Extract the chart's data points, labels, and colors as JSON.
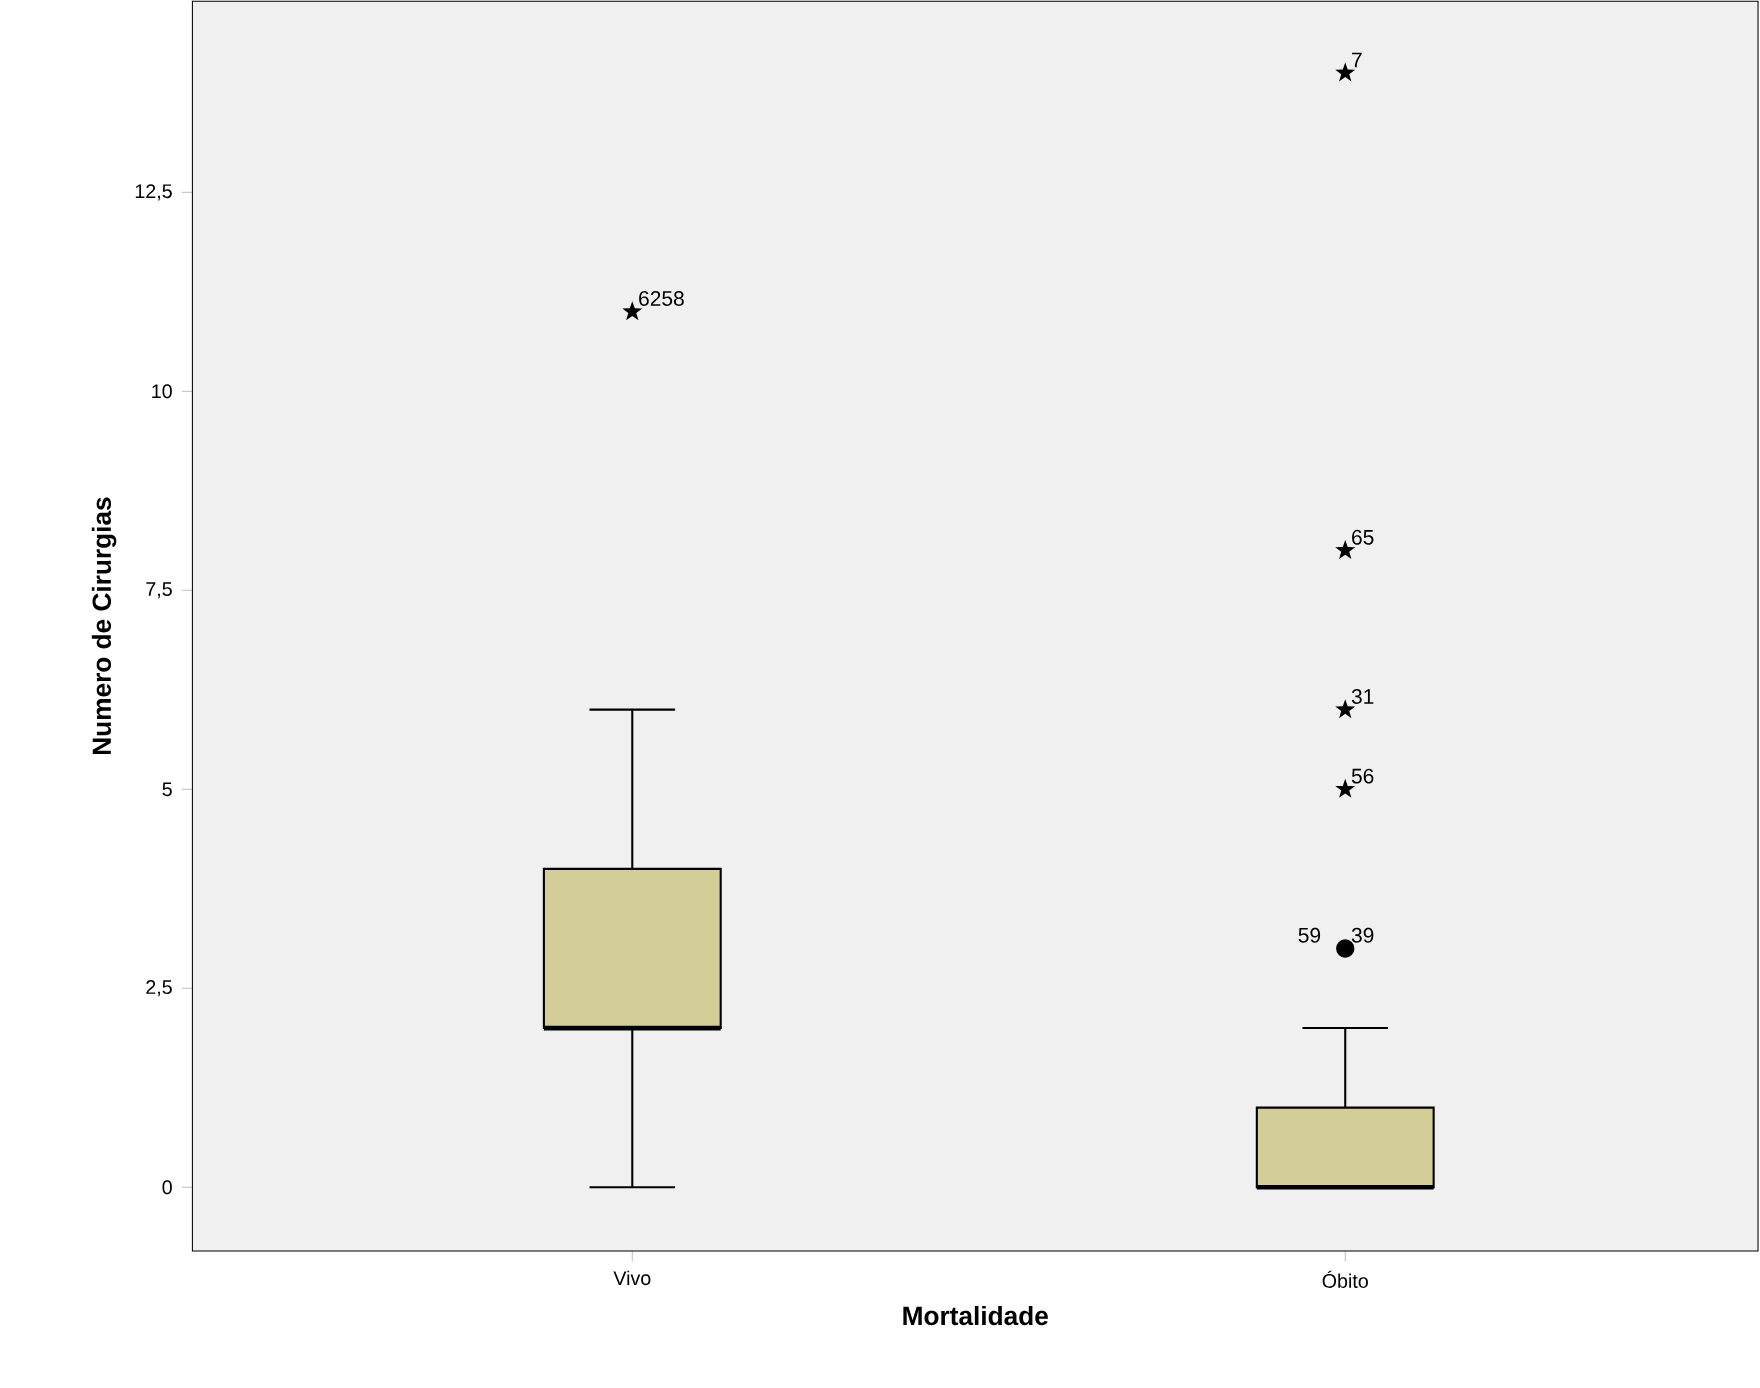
{
  "chart_data": {
    "type": "box",
    "xlabel": "Mortalidade",
    "ylabel": "Numero de Cirurgias",
    "categories": [
      "Vivo",
      "Óbito"
    ],
    "color": "#d3ce97",
    "boxes": [
      {
        "low": 0,
        "q1": 2,
        "median": 2,
        "q3": 4,
        "high": 6
      },
      {
        "low": 0,
        "q1": 0,
        "median": 0,
        "q3": 1,
        "high": 2
      }
    ],
    "series": [
      {
        "type": "scatter",
        "marker": "star",
        "color": "#000000",
        "x": [
          "Vivo",
          "Óbito",
          "Óbito",
          "Óbito",
          "Óbito"
        ],
        "values": [
          11,
          14,
          8,
          6,
          5
        ]
      },
      {
        "type": "scatter",
        "marker": "circle",
        "color": "#000000",
        "x": [
          "Óbito"
        ],
        "values": [
          3
        ]
      }
    ],
    "ylim": [
      -0.8,
      14.9
    ],
    "yticks": [
      0,
      {
        "value": 2.5,
        "label": "2,5"
      },
      5,
      {
        "value": 7.5,
        "label": "7,5"
      },
      10,
      {
        "value": 12.5,
        "label": "12,5"
      }
    ],
    "annotations": [
      {
        "text": "6258",
        "x": "Vivo",
        "y": 11
      },
      {
        "text": "7",
        "x": "Óbito",
        "y": 14
      },
      {
        "text": "65",
        "x": "Óbito",
        "y": 8
      },
      {
        "text": "31",
        "x": "Óbito",
        "y": 6
      },
      {
        "text": "56",
        "x": "Óbito",
        "y": 5
      },
      {
        "text": "59",
        "x": "Óbito",
        "y": 3
      },
      {
        "text": "39",
        "x": "Óbito",
        "y": 3
      }
    ]
  }
}
